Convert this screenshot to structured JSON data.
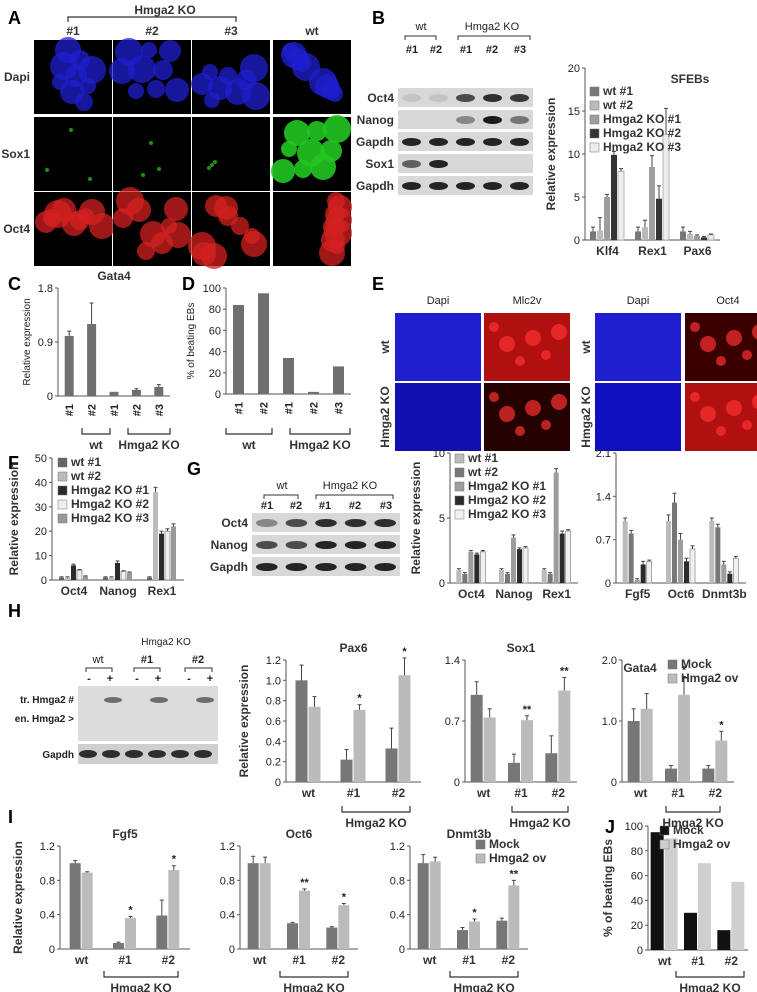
{
  "figure": {
    "panels": [
      "A",
      "B",
      "C",
      "D",
      "E",
      "F",
      "G",
      "H",
      "I",
      "J"
    ],
    "colors": {
      "dark": "#2d2d2d",
      "mid": "#6f6f6f",
      "light": "#c2c2c2",
      "lighter": "#e6e6e6",
      "blue": "#1f1fd0",
      "green": "#22c522",
      "red": "#d42020"
    }
  },
  "panelA": {
    "group_label": "Hmga2 KO",
    "cols": [
      "#1",
      "#2",
      "#3",
      "wt"
    ],
    "rows": [
      "Dapi",
      "Sox1",
      "Oct4"
    ]
  },
  "panelB": {
    "blot": {
      "wt": "wt",
      "ko": "Hmga2 KO",
      "lanes": [
        "#1",
        "#2",
        "#1",
        "#2",
        "#3"
      ],
      "rows": [
        "Oct4",
        "Nanog",
        "Gapdh",
        "Sox1",
        "Gapdh"
      ]
    }
  },
  "panelE": {
    "cols": [
      "Dapi",
      "Mlc2v",
      "Dapi",
      "Oct4"
    ],
    "rows": [
      "wt",
      "Hmga2 KO"
    ]
  },
  "panelG": {
    "blot": {
      "wt": "wt",
      "ko": "Hmga2 KO",
      "lanes": [
        "#1",
        "#2",
        "#1",
        "#2",
        "#3"
      ],
      "rows": [
        "Oct4",
        "Nanog",
        "Gapdh"
      ]
    }
  },
  "panelH": {
    "blot": {
      "wt": "wt",
      "ko": "Hmga2 KO",
      "sub": [
        "#1",
        "#2"
      ],
      "signs": [
        "-",
        "+",
        "-",
        "+",
        "-",
        "+"
      ],
      "rows": [
        "tr. Hmga2 #",
        "en. Hmga2 >",
        "Gapdh"
      ]
    }
  },
  "chart_data": [
    {
      "panel": "B",
      "type": "bar",
      "title": "SFEBs",
      "ylabel": "Relative expression",
      "ylim": [
        0,
        20
      ],
      "yticks": [
        0,
        5,
        10,
        15,
        20
      ],
      "categories": [
        "Klf4",
        "Rex1",
        "Pax6"
      ],
      "series": [
        {
          "name": "wt #1",
          "values": [
            1.0,
            1.0,
            1.0
          ]
        },
        {
          "name": "wt #2",
          "values": [
            1.1,
            1.5,
            0.7
          ]
        },
        {
          "name": "Hmga2 KO #1",
          "values": [
            5.0,
            8.5,
            0.5
          ]
        },
        {
          "name": "Hmga2 KO #2",
          "values": [
            9.9,
            4.8,
            0.3
          ]
        },
        {
          "name": "Hmga2 KO #3",
          "values": [
            8.0,
            12.3,
            0.6
          ]
        }
      ]
    },
    {
      "panel": "C",
      "type": "bar",
      "title": "Gata4",
      "ylabel": "Relative expression",
      "ylim": [
        0,
        1.8
      ],
      "yticks": [
        "0",
        "0.9",
        "1.8"
      ],
      "categories": [
        "#1",
        "#2",
        "#1",
        "#2",
        "#3"
      ],
      "groups": [
        "wt",
        "Hmga2 KO"
      ],
      "values": [
        1.0,
        1.2,
        0.07,
        0.1,
        0.15
      ]
    },
    {
      "panel": "D",
      "type": "bar",
      "ylabel": "% of beating EBs",
      "ylim": [
        0,
        100
      ],
      "yticks": [
        0,
        20,
        40,
        60,
        80,
        100
      ],
      "categories": [
        "#1",
        "#2",
        "#1",
        "#2",
        "#3"
      ],
      "groups": [
        "wt",
        "Hmga2 KO"
      ],
      "values": [
        84,
        95,
        34,
        2,
        26
      ]
    },
    {
      "panel": "F",
      "type": "bar",
      "ylabel": "Relative expression",
      "ylim": [
        0,
        50
      ],
      "yticks": [
        0,
        10,
        20,
        30,
        40,
        50
      ],
      "categories": [
        "Oct4",
        "Nanog",
        "Rex1"
      ],
      "series": [
        {
          "name": "wt #1",
          "values": [
            1,
            1,
            1
          ]
        },
        {
          "name": "wt #2",
          "values": [
            1,
            1,
            36
          ]
        },
        {
          "name": "Hmga2 KO #1",
          "values": [
            6,
            7,
            19
          ]
        },
        {
          "name": "Hmga2 KO #2",
          "values": [
            4,
            3.5,
            20
          ]
        },
        {
          "name": "Hmga2 KO #3",
          "values": [
            1.5,
            3,
            22
          ]
        }
      ]
    },
    {
      "panel": "G1",
      "type": "bar",
      "ylabel": "Relative expression",
      "ylim": [
        0,
        10
      ],
      "yticks": [
        0,
        5,
        10
      ],
      "categories": [
        "Oct4",
        "Nanog",
        "Rex1"
      ],
      "series": [
        {
          "name": "wt #1",
          "values": [
            1,
            1,
            1
          ]
        },
        {
          "name": "wt #2",
          "values": [
            0.7,
            0.7,
            0.7
          ]
        },
        {
          "name": "Hmga2 KO #1",
          "values": [
            2.4,
            3.5,
            8.5
          ]
        },
        {
          "name": "Hmga2 KO #2",
          "values": [
            2.2,
            2.6,
            3.8
          ]
        },
        {
          "name": "Hmga2 KO #3",
          "values": [
            2.4,
            2.7,
            4.0
          ]
        }
      ]
    },
    {
      "panel": "G2",
      "type": "bar",
      "ylim": [
        0,
        2.1
      ],
      "yticks": [
        "0",
        "0.7",
        "1.4",
        "2.1"
      ],
      "categories": [
        "Fgf5",
        "Oct6",
        "Dnmt3b"
      ],
      "series": [
        {
          "name": "wt #1",
          "values": [
            1.0,
            1.0,
            1.0
          ]
        },
        {
          "name": "wt #2",
          "values": [
            0.8,
            1.3,
            0.9
          ]
        },
        {
          "name": "Hmga2 KO #1",
          "values": [
            0.05,
            0.7,
            0.3
          ]
        },
        {
          "name": "Hmga2 KO #2",
          "values": [
            0.3,
            0.35,
            0.15
          ]
        },
        {
          "name": "Hmga2 KO #3",
          "values": [
            0.35,
            0.55,
            0.4
          ]
        }
      ]
    },
    {
      "panel": "H1",
      "type": "bar",
      "title": "Pax6",
      "ylabel": "Relative expression",
      "ylim": [
        0,
        1.2
      ],
      "yticks": [
        "0",
        "0.2",
        "0.4",
        "0.6",
        "0.8",
        "1.0",
        "1.2"
      ],
      "categories": [
        "wt",
        "#1",
        "#2"
      ],
      "group": "Hmga2 KO",
      "series": [
        {
          "name": "Mock",
          "values": [
            1.0,
            0.22,
            0.33
          ]
        },
        {
          "name": "Hmga2 ov",
          "values": [
            0.74,
            0.71,
            1.05
          ]
        }
      ],
      "annotations": [
        "",
        "*",
        "*"
      ]
    },
    {
      "panel": "H2",
      "type": "bar",
      "title": "Sox1",
      "ylim": [
        0,
        1.4
      ],
      "yticks": [
        "0",
        "0.7",
        "1.4"
      ],
      "categories": [
        "wt",
        "#1",
        "#2"
      ],
      "group": "Hmga2 KO",
      "series": [
        {
          "name": "Mock",
          "values": [
            1.0,
            0.22,
            0.33
          ]
        },
        {
          "name": "Hmga2 ov",
          "values": [
            0.74,
            0.71,
            1.05
          ]
        }
      ],
      "annotations": [
        "",
        "**",
        "**"
      ]
    },
    {
      "panel": "H3",
      "type": "bar",
      "title": "",
      "ylim": [
        0,
        2.0
      ],
      "yticks": [
        "0",
        "1.0",
        "2.0"
      ],
      "categories": [
        "wt",
        "#1",
        "#2"
      ],
      "group": "Hmga2 KO",
      "series": [
        {
          "name": "Mock",
          "values": [
            1.0,
            0.22,
            0.22
          ]
        },
        {
          "name": "Hmga2 ov",
          "values": [
            1.2,
            1.43,
            0.68
          ]
        }
      ],
      "legend": [
        "Mock",
        "Hmga2 ov"
      ],
      "inner_title": "Gata4",
      "annotations": [
        "",
        "*",
        "*"
      ]
    },
    {
      "panel": "I1",
      "type": "bar",
      "title": "Fgf5",
      "ylabel": "Relative expression",
      "ylim": [
        0,
        1.2
      ],
      "yticks": [
        "0",
        "0.4",
        "0.8",
        "1.2"
      ],
      "categories": [
        "wt",
        "#1",
        "#2"
      ],
      "group": "Hmga2 KO",
      "series": [
        {
          "name": "Mock",
          "values": [
            1.0,
            0.07,
            0.39
          ]
        },
        {
          "name": "Hmga2 ov",
          "values": [
            0.89,
            0.36,
            0.92
          ]
        }
      ],
      "annotations": [
        "",
        "*",
        "*"
      ]
    },
    {
      "panel": "I2",
      "type": "bar",
      "title": "Oct6",
      "ylim": [
        0,
        1.2
      ],
      "yticks": [
        "0",
        "0.4",
        "0.8",
        "1.2"
      ],
      "categories": [
        "wt",
        "#1",
        "#2"
      ],
      "group": "Hmga2 KO",
      "series": [
        {
          "name": "Mock",
          "values": [
            1.0,
            0.3,
            0.25
          ]
        },
        {
          "name": "Hmga2 ov",
          "values": [
            1.0,
            0.68,
            0.51
          ]
        }
      ],
      "annotations": [
        "",
        "**",
        "*"
      ]
    },
    {
      "panel": "I3",
      "type": "bar",
      "title": "Dnmt3b",
      "ylim": [
        0,
        1.2
      ],
      "yticks": [
        "0",
        "0.4",
        "0.8",
        "1.2"
      ],
      "categories": [
        "wt",
        "#1",
        "#2"
      ],
      "group": "Hmga2 KO",
      "series": [
        {
          "name": "Mock",
          "values": [
            1.0,
            0.22,
            0.33
          ]
        },
        {
          "name": "Hmga2 ov",
          "values": [
            1.02,
            0.32,
            0.74
          ]
        }
      ],
      "legend": [
        "Mock",
        "Hmga2 ov"
      ],
      "annotations": [
        "",
        "*",
        "**"
      ]
    },
    {
      "panel": "J",
      "type": "bar",
      "ylabel": "% of beating EBs",
      "ylim": [
        0,
        100
      ],
      "yticks": [
        0,
        20,
        40,
        60,
        80,
        100
      ],
      "categories": [
        "wt",
        "#1",
        "#2"
      ],
      "group": "Hmga2 KO",
      "series": [
        {
          "name": "Mock",
          "values": [
            95,
            30,
            16
          ]
        },
        {
          "name": "Hmga2 ov",
          "values": [
            90,
            70,
            55
          ]
        }
      ]
    }
  ]
}
